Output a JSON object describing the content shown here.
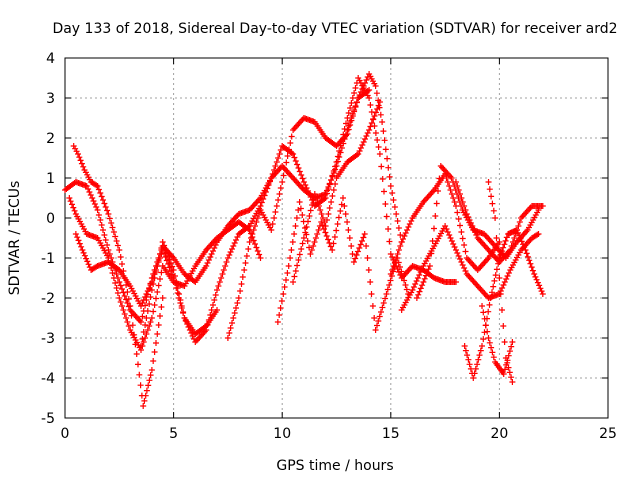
{
  "chart_data": {
    "type": "scatter",
    "title": "Day 133 of 2018, Sidereal Day-to-day VTEC variation (SDTVAR) for receiver ard2",
    "xlabel": "GPS time / hours",
    "ylabel": "SDTVAR / TECUs",
    "xlim": [
      0,
      25
    ],
    "ylim": [
      -5,
      4
    ],
    "xticks": [
      0,
      5,
      10,
      15,
      20,
      25
    ],
    "yticks": [
      -5,
      -4,
      -3,
      -2,
      -1,
      0,
      1,
      2,
      3,
      4
    ],
    "grid": true,
    "marker": "+",
    "series": [
      {
        "name": "track-1",
        "color": "#ff0000",
        "x": [
          0.0,
          0.5,
          1.0,
          1.5,
          2.0,
          2.5,
          3.0,
          3.5,
          4.0,
          4.5,
          5.0,
          5.5,
          6.0,
          6.5,
          7.0,
          7.5,
          8.0,
          8.5,
          9.0,
          9.5,
          10.0,
          10.5,
          11.0,
          11.5,
          12.0,
          12.5,
          13.0,
          13.5,
          14.0
        ],
        "y": [
          0.7,
          0.9,
          0.8,
          0.2,
          -0.8,
          -1.6,
          -2.3,
          -2.6,
          -1.5,
          -0.7,
          -1.0,
          -1.4,
          -1.6,
          -1.2,
          -0.6,
          -0.2,
          0.1,
          0.2,
          0.5,
          1.0,
          1.3,
          1.0,
          0.7,
          0.5,
          0.6,
          1.3,
          2.2,
          3.0,
          3.2
        ]
      },
      {
        "name": "track-2",
        "color": "#ff0000",
        "x": [
          0.2,
          0.5,
          1.0,
          1.5,
          2.0,
          2.5,
          3.0,
          3.5,
          4.0,
          4.5,
          5.0,
          5.5,
          6.0,
          6.5,
          7.0,
          7.5,
          8.0,
          8.5,
          9.0
        ],
        "y": [
          0.5,
          0.1,
          -0.4,
          -0.5,
          -1.0,
          -2.0,
          -2.8,
          -3.3,
          -2.5,
          -1.2,
          -1.6,
          -1.7,
          -1.2,
          -0.8,
          -0.5,
          -0.3,
          -0.1,
          -0.3,
          -1.0
        ]
      },
      {
        "name": "track-3",
        "color": "#ff0000",
        "x": [
          0.4,
          0.6,
          0.9,
          1.2,
          1.5,
          2.0,
          2.5,
          3.0,
          3.3,
          3.6,
          4.0,
          4.5
        ],
        "y": [
          1.8,
          1.6,
          1.2,
          0.9,
          0.8,
          0.1,
          -0.8,
          -2.2,
          -3.4,
          -4.7,
          -3.8,
          -2.0
        ]
      },
      {
        "name": "track-4",
        "color": "#ff0000",
        "x": [
          0.5,
          0.8,
          1.2,
          1.5,
          2.0,
          2.5,
          3.0,
          3.5,
          4.0,
          4.5,
          5.0,
          5.5,
          6.0,
          6.5,
          7.0
        ],
        "y": [
          -0.4,
          -0.8,
          -1.3,
          -1.2,
          -1.1,
          -1.3,
          -1.7,
          -2.2,
          -1.6,
          -0.8,
          -1.5,
          -2.5,
          -2.9,
          -2.7,
          -2.3
        ]
      },
      {
        "name": "track-5",
        "color": "#ff0000",
        "x": [
          3.5,
          4.0,
          4.5,
          5.0,
          5.5,
          6.0,
          6.5,
          7.0,
          7.5,
          8.0,
          8.5,
          9.0,
          9.5,
          10.0,
          10.5,
          11.0,
          11.5,
          12.0,
          12.5,
          13.0,
          13.5,
          14.0,
          14.5,
          15.0,
          15.5,
          16.0,
          16.5,
          17.0,
          17.5,
          18.0
        ],
        "y": [
          -3.2,
          -1.8,
          -0.6,
          -1.3,
          -2.5,
          -3.1,
          -2.8,
          -1.8,
          -1.0,
          -0.4,
          -0.2,
          0.3,
          1.0,
          1.8,
          1.6,
          0.9,
          0.3,
          0.5,
          1.4,
          2.5,
          3.5,
          3.0,
          1.6,
          -0.9,
          -1.5,
          -1.2,
          -1.3,
          -1.5,
          -1.6,
          -1.6
        ]
      },
      {
        "name": "track-6",
        "color": "#ff0000",
        "x": [
          7.5,
          8.0,
          8.5,
          9.0,
          9.5,
          10.0,
          10.5,
          11.0,
          11.5,
          12.0,
          12.5,
          13.0,
          13.5,
          14.0,
          14.3,
          14.6,
          15.0,
          15.5
        ],
        "y": [
          -3.0,
          -2.0,
          -0.6,
          0.2,
          -0.3,
          0.9,
          2.2,
          2.5,
          2.4,
          2.0,
          1.8,
          2.1,
          3.0,
          3.6,
          3.3,
          2.4,
          0.8,
          -0.6
        ]
      },
      {
        "name": "track-7",
        "color": "#ff0000",
        "x": [
          9.8,
          10.3,
          10.8,
          11.3,
          11.8,
          12.3,
          12.8,
          13.3,
          13.8,
          14.3,
          14.8,
          15.3,
          15.8
        ],
        "y": [
          -2.6,
          -1.2,
          0.4,
          -0.9,
          -0.1,
          -0.8,
          0.5,
          -1.1,
          -0.4,
          -2.8,
          -1.9,
          -1.0,
          -1.9
        ]
      },
      {
        "name": "track-8",
        "color": "#ff0000",
        "x": [
          10.5,
          11.0,
          11.5,
          12.0,
          12.5,
          13.0,
          13.5,
          14.0,
          14.5
        ],
        "y": [
          -1.6,
          -0.5,
          0.6,
          -0.2,
          1.0,
          1.4,
          1.6,
          2.2,
          2.9
        ]
      },
      {
        "name": "track-9",
        "color": "#ff0000",
        "x": [
          15.0,
          15.5,
          16.0,
          16.5,
          17.0,
          17.5,
          18.0,
          18.5,
          19.0,
          19.5,
          20.0
        ],
        "y": [
          -1.4,
          -0.6,
          0.0,
          0.4,
          0.7,
          1.1,
          0.3,
          -1.0,
          -1.3,
          -1.0,
          -0.6
        ]
      },
      {
        "name": "track-10",
        "color": "#ff0000",
        "x": [
          15.5,
          16.0,
          16.5,
          17.0,
          17.5,
          18.0,
          18.5,
          19.0,
          19.5,
          20.0,
          20.5,
          21.0,
          21.5,
          21.8
        ],
        "y": [
          -2.3,
          -1.8,
          -1.2,
          -0.7,
          -0.2,
          -0.8,
          -1.4,
          -1.7,
          -2.0,
          -1.9,
          -1.3,
          -0.8,
          -0.5,
          -0.4
        ]
      },
      {
        "name": "track-11",
        "color": "#ff0000",
        "x": [
          16.2,
          16.8,
          17.3,
          17.8,
          18.3,
          18.8,
          19.3,
          19.8,
          20.3,
          20.8,
          21.3,
          21.8
        ],
        "y": [
          -2.0,
          -1.2,
          1.3,
          1.0,
          0.2,
          -0.3,
          -0.4,
          -0.7,
          -1.0,
          -0.6,
          -0.3,
          0.2
        ]
      },
      {
        "name": "track-12",
        "color": "#ff0000",
        "x": [
          18.0,
          18.5,
          19.0,
          19.5,
          20.0,
          20.5,
          21.0,
          21.5,
          22.0
        ],
        "y": [
          0.9,
          0.1,
          -0.5,
          -0.8,
          -1.1,
          -0.8,
          0.0,
          0.3,
          0.3
        ]
      },
      {
        "name": "track-13",
        "color": "#ff0000",
        "x": [
          18.4,
          18.8,
          19.2,
          19.6,
          20.0,
          20.4,
          20.8,
          21.2,
          21.6,
          22.0
        ],
        "y": [
          -3.2,
          -4.0,
          -3.2,
          -2.0,
          -1.0,
          -0.4,
          -0.3,
          -0.8,
          -1.4,
          -1.9
        ]
      },
      {
        "name": "track-14",
        "color": "#ff0000",
        "x": [
          19.5,
          19.8,
          20.0,
          20.3,
          20.6
        ],
        "y": [
          0.9,
          0.0,
          -1.5,
          -3.5,
          -4.1
        ]
      },
      {
        "name": "track-15",
        "color": "#ff0000",
        "x": [
          19.2,
          19.5,
          19.8,
          20.2,
          20.6
        ],
        "y": [
          -2.2,
          -3.0,
          -3.6,
          -3.9,
          -3.1
        ]
      }
    ]
  }
}
